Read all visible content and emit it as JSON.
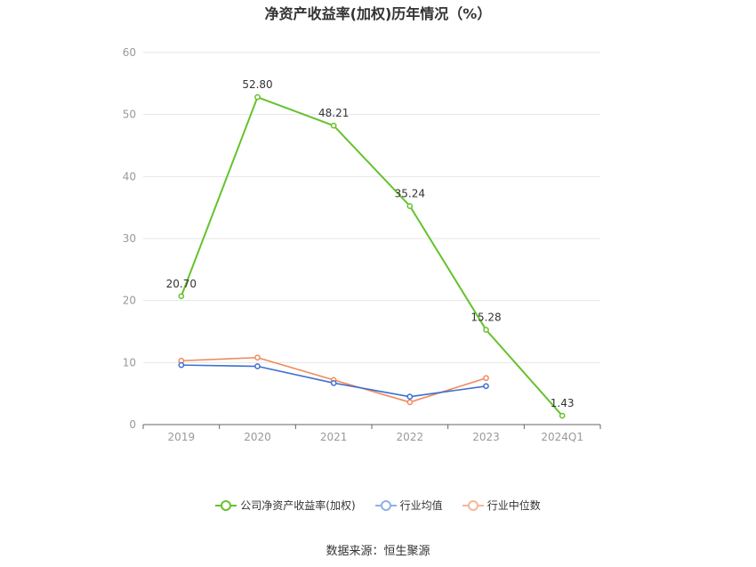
{
  "title": "净资产收益率(加权)历年情况（%）",
  "source": "数据来源：恒生聚源",
  "colors": {
    "company": "#66c22d",
    "avg": "#3d6fd1",
    "median": "#ef8a5b",
    "grid": "#e6e6e6",
    "axis": "#999999"
  },
  "chart_data": {
    "type": "line",
    "title": "净资产收益率(加权)历年情况（%）",
    "categories": [
      "2019",
      "2020",
      "2021",
      "2022",
      "2023",
      "2024Q1"
    ],
    "ylim": [
      0,
      60
    ],
    "yticks": [
      0,
      10,
      20,
      30,
      40,
      50,
      60
    ],
    "grid": true,
    "legend_position": "bottom",
    "series": [
      {
        "name": "公司净资产收益率(加权)",
        "values": [
          20.7,
          52.8,
          48.21,
          35.24,
          15.28,
          1.43
        ],
        "labels": [
          "20.70",
          "52.80",
          "48.21",
          "35.24",
          "15.28",
          "1.43"
        ]
      },
      {
        "name": "行业均值",
        "values": [
          9.6,
          9.4,
          6.7,
          4.5,
          6.2,
          null
        ]
      },
      {
        "name": "行业中位数",
        "values": [
          10.3,
          10.8,
          7.2,
          3.6,
          7.5,
          null
        ]
      }
    ]
  }
}
